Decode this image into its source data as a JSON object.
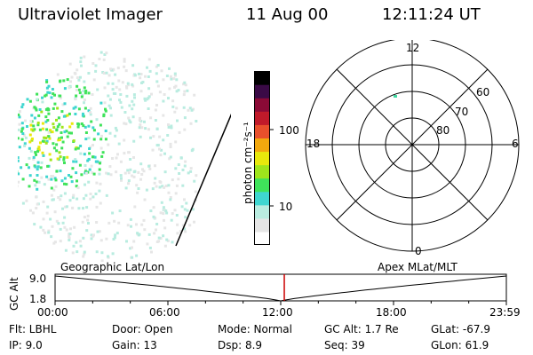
{
  "header": {
    "instrument": "Ultraviolet Imager",
    "date": "11 Aug 00",
    "time": "12:11:24 UT"
  },
  "colorbar": {
    "unit_label": "photon cm⁻²s⁻¹",
    "ticks": [
      {
        "label": "100",
        "value": 100
      },
      {
        "label": "10",
        "value": 10
      }
    ],
    "colors": [
      "#ffffff",
      "#e6e6e6",
      "#b9ece0",
      "#3fd6d0",
      "#3fe35a",
      "#9fe51c",
      "#e8e80c",
      "#f2a80e",
      "#e8502c",
      "#c01a2a",
      "#8b0a36",
      "#3a0a46",
      "#000000"
    ]
  },
  "polar": {
    "mlt_labels": [
      {
        "label": "12",
        "mlt": 12
      },
      {
        "label": "18",
        "mlt": 18
      },
      {
        "label": "6",
        "mlt": 6
      },
      {
        "label": "0",
        "mlt": 0
      }
    ],
    "lat_labels": [
      {
        "label": "60",
        "lat": 60
      },
      {
        "label": "70",
        "lat": 70
      },
      {
        "label": "80",
        "lat": 80
      }
    ]
  },
  "timeline": {
    "left_caption": "Geographic Lat/Lon",
    "right_caption": "Apex MLat/MLT",
    "axis_label": "GC Alt",
    "ymax_label": "9.0",
    "ymin_label": "1.8",
    "hours": [
      "00:00",
      "06:00",
      "12:00",
      "18:00",
      "23:59"
    ],
    "marker_color": "#cc0000",
    "current_hour": 12.19
  },
  "info": {
    "flt": "Flt: LBHL",
    "ip": "IP:  9.0",
    "door": "Door: Open",
    "gain": "Gain: 13",
    "mode": "Mode: Normal",
    "dsp": "Dsp:     8.9",
    "gcalt": "GC Alt: 1.7 Re",
    "seq": "Seq: 39",
    "glat": "GLat:  -67.9",
    "glon": "GLon:  61.9"
  }
}
